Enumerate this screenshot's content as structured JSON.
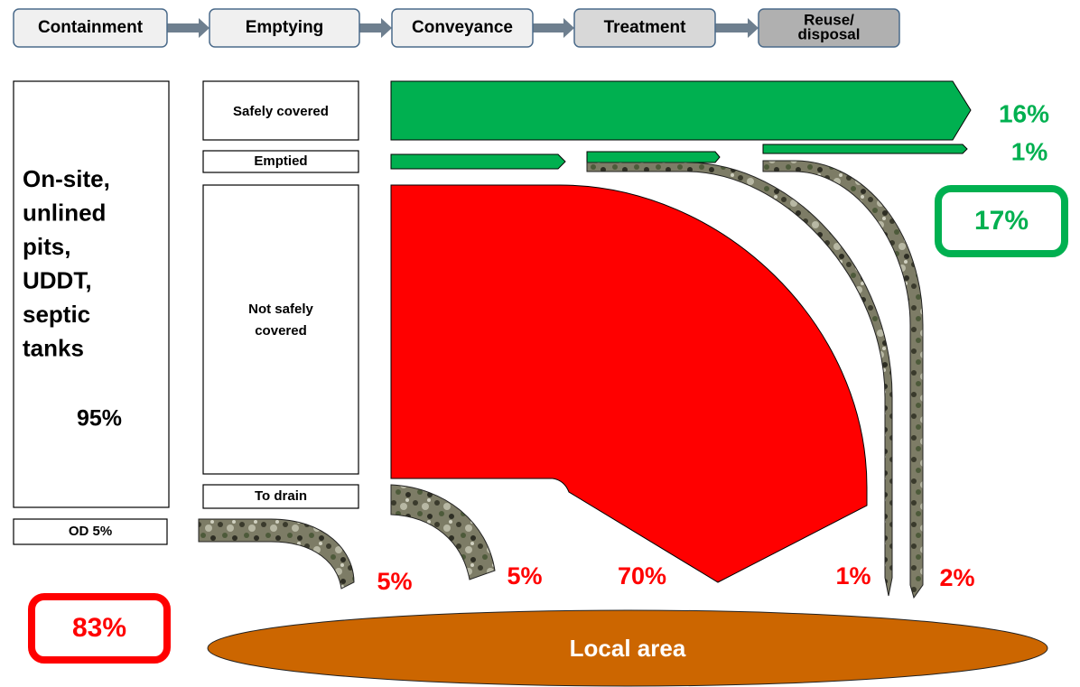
{
  "stages": [
    {
      "lines": [
        "Containment"
      ]
    },
    {
      "lines": [
        "Emptying"
      ]
    },
    {
      "lines": [
        "Conveyance"
      ]
    },
    {
      "lines": [
        "Treatment"
      ]
    },
    {
      "lines": [
        "Reuse/",
        "disposal"
      ]
    }
  ],
  "containment": {
    "lines": [
      "On-site,",
      "unlined",
      "pits,",
      "UDDT,",
      "septic",
      "tanks"
    ],
    "share": "95%"
  },
  "open_defecation": "OD 5%",
  "emptying_boxes": [
    "Safely covered",
    "Emptied",
    "Not safely covered",
    "To drain"
  ],
  "safe_flows": [
    "16%",
    "1%"
  ],
  "safe_total": "17%",
  "unsafe_total": "83%",
  "unsafe_flows": [
    "5%",
    "5%",
    "70%",
    "1%",
    "2%"
  ],
  "destination": "Local area"
}
